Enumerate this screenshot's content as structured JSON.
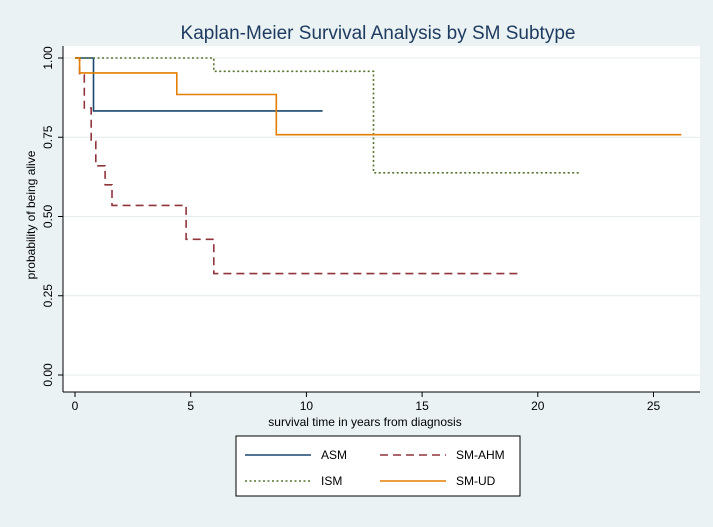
{
  "chart_data": {
    "type": "line",
    "subtype": "step",
    "title": "Kaplan-Meier Survival Analysis by SM Subtype",
    "xlabel": "survival time in years from diagnosis",
    "ylabel": "probability of being alive",
    "xlim": [
      0,
      27
    ],
    "ylim": [
      0,
      1.05
    ],
    "xticks": [
      0,
      5,
      10,
      15,
      20,
      25
    ],
    "xtick_labels": [
      "0",
      "5",
      "10",
      "15",
      "20",
      "25"
    ],
    "yticks": [
      0,
      0.25,
      0.5,
      0.75,
      1.0
    ],
    "ytick_labels": [
      "0.00",
      "0.25",
      "0.50",
      "0.75",
      "1.00"
    ],
    "grid": true,
    "legend_position": "bottom-center",
    "series": [
      {
        "name": "ASM",
        "color": "#1a476f",
        "dash": "solid",
        "points": [
          [
            0,
            1.0
          ],
          [
            0.8,
            1.0
          ],
          [
            0.8,
            0.833
          ],
          [
            10.7,
            0.833
          ]
        ]
      },
      {
        "name": "SM-AHM",
        "color": "#90353b",
        "dash": "long-dash",
        "points": [
          [
            0,
            1.0
          ],
          [
            0.2,
            1.0
          ],
          [
            0.2,
            0.947
          ],
          [
            0.4,
            0.947
          ],
          [
            0.4,
            0.842
          ],
          [
            0.7,
            0.842
          ],
          [
            0.7,
            0.737
          ],
          [
            0.9,
            0.737
          ],
          [
            0.9,
            0.66
          ],
          [
            1.3,
            0.66
          ],
          [
            1.3,
            0.6
          ],
          [
            1.6,
            0.6
          ],
          [
            1.6,
            0.535
          ],
          [
            4.8,
            0.535
          ],
          [
            4.8,
            0.428
          ],
          [
            6.0,
            0.428
          ],
          [
            6.0,
            0.32
          ],
          [
            19.2,
            0.32
          ]
        ]
      },
      {
        "name": "ISM",
        "color": "#55752f",
        "dash": "dotted",
        "points": [
          [
            0,
            1.0
          ],
          [
            6.0,
            1.0
          ],
          [
            6.0,
            0.958
          ],
          [
            12.9,
            0.958
          ],
          [
            12.9,
            0.638
          ],
          [
            21.8,
            0.638
          ]
        ]
      },
      {
        "name": "SM-UD",
        "color": "#e37e00",
        "dash": "solid",
        "points": [
          [
            0,
            1.0
          ],
          [
            0.2,
            1.0
          ],
          [
            0.2,
            0.953
          ],
          [
            4.4,
            0.953
          ],
          [
            4.4,
            0.885
          ],
          [
            8.7,
            0.885
          ],
          [
            8.7,
            0.758
          ],
          [
            26.2,
            0.758
          ]
        ]
      }
    ]
  }
}
